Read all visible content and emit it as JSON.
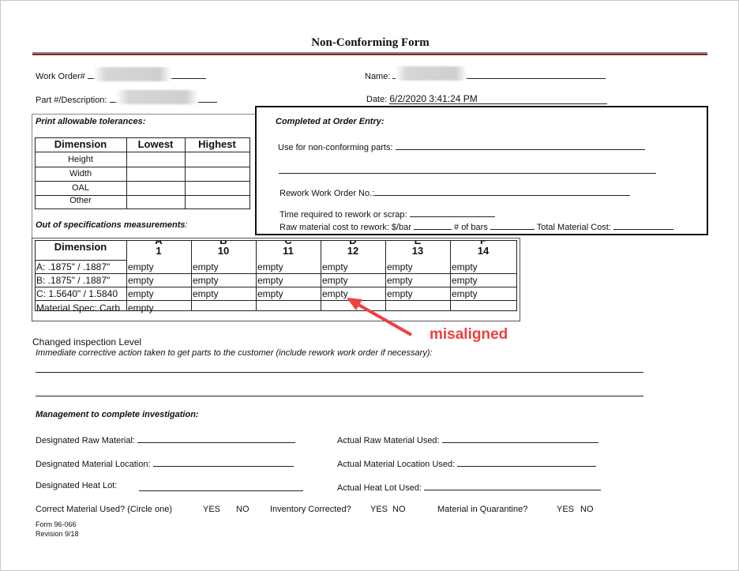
{
  "title": "Non-Conforming Form",
  "header": {
    "work_order_label": "Work Order#",
    "name_label": "Name:",
    "part_label": "Part #/Description:",
    "date_label": "Date:",
    "date_value": "6/2/2020 3:41:24 PM"
  },
  "tolerances": {
    "heading": "Print allowable tolerances:",
    "columns": [
      "Dimension",
      "Lowest",
      "Highest"
    ],
    "rows": [
      "Height",
      "Width",
      "OAL",
      "Other"
    ]
  },
  "order_entry": {
    "heading": "Completed at Order Entry:",
    "use_for": "Use for non-conforming parts:",
    "rework_wo": "Rework Work Order No.:",
    "time_required": "Time required to rework or scrap:",
    "raw_cost": "Raw material cost to rework: $/bar",
    "num_bars": "# of bars",
    "total_cost": "Total Material Cost:"
  },
  "measurements": {
    "heading": "Out of specifications measurements",
    "columns": [
      {
        "letter": "A",
        "number": "1"
      },
      {
        "letter": "B",
        "number": "10"
      },
      {
        "letter": "C",
        "number": "11"
      },
      {
        "letter": "D",
        "number": "12"
      },
      {
        "letter": "E",
        "number": "13"
      },
      {
        "letter": "F",
        "number": "14"
      }
    ],
    "dimension_header": "Dimension",
    "rows": [
      {
        "label": "A: .1875\" / .1887\"",
        "values": [
          "empty",
          "empty",
          "empty",
          "empty",
          "empty",
          "empty"
        ]
      },
      {
        "label": "B: .1875\" / .1887\"",
        "values": [
          "empty",
          "empty",
          "empty",
          "empty",
          "empty",
          "empty"
        ]
      },
      {
        "label": "C: 1.5640\" / 1.5840",
        "values": [
          "empty",
          "empty",
          "empty",
          "empty",
          "empty",
          "empty"
        ]
      },
      {
        "label": "Material Spec: Carb",
        "values": [
          "empty"
        ]
      }
    ]
  },
  "annotation": {
    "text": "misaligned",
    "color": "#f04040"
  },
  "changed_inspection": "Changed inspection Level",
  "corrective_action": "Immediate corrective action taken to get parts to the customer (include rework work order if necessary):",
  "management": {
    "heading": "Management to complete investigation:",
    "designated_raw": "Designated Raw Material:",
    "actual_raw": "Actual Raw Material Used:",
    "designated_location": "Designated Material Location:",
    "actual_location": "Actual Material Location Used:",
    "designated_heat": "Designated Heat Lot:",
    "actual_heat": "Actual Heat Lot Used:",
    "correct_material": "Correct Material Used? (Circle one)",
    "inventory_corrected": "Inventory Corrected?",
    "quarantine": "Material in Quarantine?",
    "yes": "YES",
    "no": "NO"
  },
  "footer": {
    "form_no": "Form 96-066",
    "revision": "Revision 9/18"
  },
  "colors": {
    "title_rule": "#7a2a2a"
  }
}
